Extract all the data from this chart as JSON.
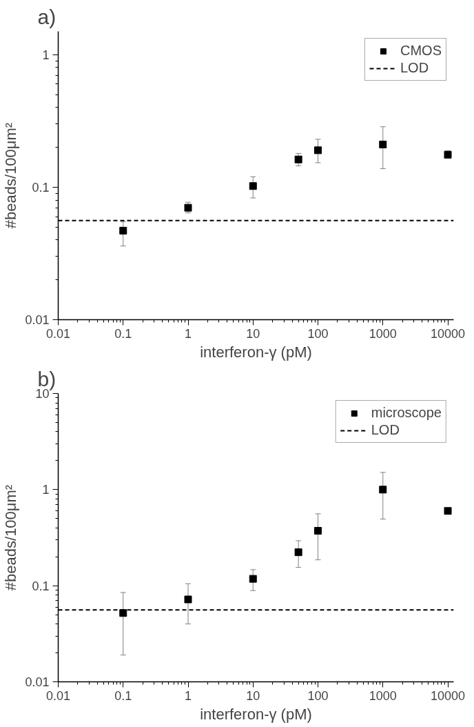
{
  "chart_data": [
    {
      "type": "scatter",
      "title": "a)",
      "xlabel": "interferon-γ (pM)",
      "ylabel": "#beads/100μm²",
      "log": "xy",
      "marker": "square",
      "grid": false,
      "legend": "top right",
      "x": [
        0.1,
        1,
        10,
        50,
        100,
        1000,
        10000
      ],
      "series": [
        {
          "name": "CMOS",
          "color": "#000000",
          "values": [
            0.047,
            0.07,
            0.102,
            0.162,
            0.19,
            0.21,
            0.176
          ],
          "errors": [
            [
              0.036,
              0.055
            ],
            [
              0.064,
              0.077
            ],
            [
              0.083,
              0.12
            ],
            [
              0.145,
              0.18
            ],
            [
              0.153,
              0.23
            ],
            [
              0.138,
              0.286
            ],
            [
              0.167,
              0.188
            ]
          ]
        }
      ],
      "ref_lines": [
        {
          "axis": "y",
          "value": 0.056,
          "label": "LOD",
          "color": "#000000",
          "line_style": "dashed"
        }
      ],
      "xlim": [
        0.01,
        12300
      ],
      "ylim": [
        0.01,
        1.5
      ],
      "xticks": [
        0.01,
        0.1,
        1,
        10,
        100,
        1000,
        10000
      ],
      "yticks": [
        0.01,
        0.1,
        1
      ]
    },
    {
      "type": "scatter",
      "title": "b)",
      "xlabel": "interferon-γ (pM)",
      "ylabel": "#beads/100μm²",
      "log": "xy",
      "marker": "square",
      "grid": false,
      "legend": "top right",
      "x": [
        0.1,
        1,
        10,
        50,
        100,
        1000,
        10000
      ],
      "series": [
        {
          "name": "microscope",
          "color": "#000000",
          "values": [
            0.052,
            0.072,
            0.118,
            0.223,
            0.373,
            1.0,
            0.6
          ],
          "errors": [
            [
              0.019,
              0.085
            ],
            [
              0.04,
              0.105
            ],
            [
              0.089,
              0.147
            ],
            [
              0.155,
              0.294
            ],
            [
              0.186,
              0.56
            ],
            [
              0.494,
              1.51
            ],
            null
          ]
        }
      ],
      "ref_lines": [
        {
          "axis": "y",
          "value": 0.056,
          "label": "LOD",
          "color": "#000000",
          "line_style": "dashed"
        }
      ],
      "xlim": [
        0.01,
        12300
      ],
      "ylim": [
        0.01,
        10
      ],
      "xticks": [
        0.01,
        0.1,
        1,
        10,
        100,
        1000,
        10000
      ],
      "yticks": [
        0.01,
        0.1,
        1,
        10
      ]
    }
  ]
}
